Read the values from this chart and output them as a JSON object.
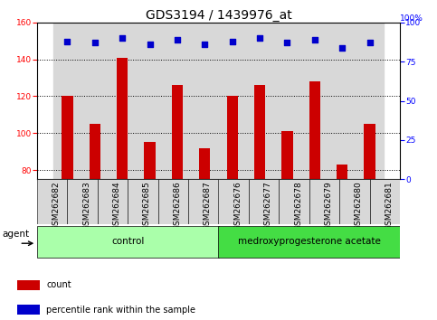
{
  "title": "GDS3194 / 1439976_at",
  "samples": [
    "GSM262682",
    "GSM262683",
    "GSM262684",
    "GSM262685",
    "GSM262686",
    "GSM262687",
    "GSM262676",
    "GSM262677",
    "GSM262678",
    "GSM262679",
    "GSM262680",
    "GSM262681"
  ],
  "count_values": [
    120,
    105,
    141,
    95,
    126,
    92,
    120,
    126,
    101,
    128,
    83,
    105
  ],
  "percentile_values": [
    88,
    87,
    90,
    86,
    89,
    86,
    88,
    90,
    87,
    89,
    84,
    87
  ],
  "bar_color": "#cc0000",
  "dot_color": "#0000cc",
  "ylim_left": [
    75,
    160
  ],
  "ylim_right": [
    0,
    100
  ],
  "yticks_left": [
    80,
    100,
    120,
    140,
    160
  ],
  "yticks_right": [
    0,
    25,
    50,
    75,
    100
  ],
  "col_bg_color": "#d8d8d8",
  "groups": [
    {
      "label": "control",
      "indices": [
        0,
        1,
        2,
        3,
        4,
        5
      ],
      "color": "#aaffaa"
    },
    {
      "label": "medroxyprogesterone acetate",
      "indices": [
        6,
        7,
        8,
        9,
        10,
        11
      ],
      "color": "#44dd44"
    }
  ],
  "agent_label": "agent",
  "legend_count_label": "count",
  "legend_pct_label": "percentile rank within the sample",
  "title_fontsize": 10,
  "tick_fontsize": 6.5,
  "label_fontsize": 7.5,
  "legend_fontsize": 7
}
